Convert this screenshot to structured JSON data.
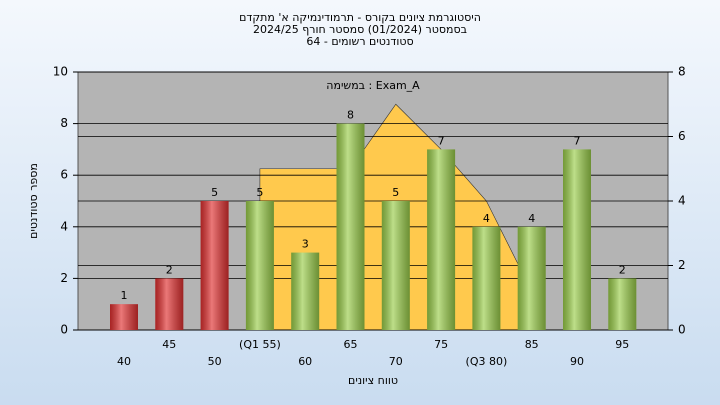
{
  "chart_data": {
    "type": "bar",
    "title": [
      "היסטוגרמת ציונים בקורס - תרמודינמיקה א' מתקדם",
      "בסמסטר  (01/2024)  סמסטר חורף 2024/25",
      "סטודנטים רשומים - 64"
    ],
    "annotation": "במשימה : Exam_A",
    "y_label": "מספר סטודנטים",
    "x_label": "טווח ציונים",
    "categories": [
      "40",
      "45",
      "50",
      "(Q1 55)",
      "60",
      "65",
      "70",
      "75",
      "(Q3 80)",
      "85",
      "90",
      "95"
    ],
    "values": [
      1,
      2,
      5,
      5,
      3,
      8,
      5,
      7,
      4,
      4,
      7,
      2
    ],
    "colors": [
      "#e03030",
      "#e03030",
      "#e03030",
      "#9acd4a",
      "#9acd4a",
      "#9acd4a",
      "#9acd4a",
      "#9acd4a",
      "#9acd4a",
      "#9acd4a",
      "#9acd4a",
      "#9acd4a"
    ],
    "area": {
      "axis": "y2",
      "color": "#ffc94d",
      "values": [
        null,
        null,
        null,
        5,
        5,
        5,
        7,
        5.6,
        4,
        1.2,
        null,
        null
      ]
    },
    "ylim": [
      0,
      10
    ],
    "yticks": [
      0,
      2,
      4,
      6,
      8,
      10
    ],
    "y2lim": [
      0,
      8
    ],
    "y2ticks": [
      0,
      2,
      4,
      6,
      8
    ],
    "grid": true
  }
}
